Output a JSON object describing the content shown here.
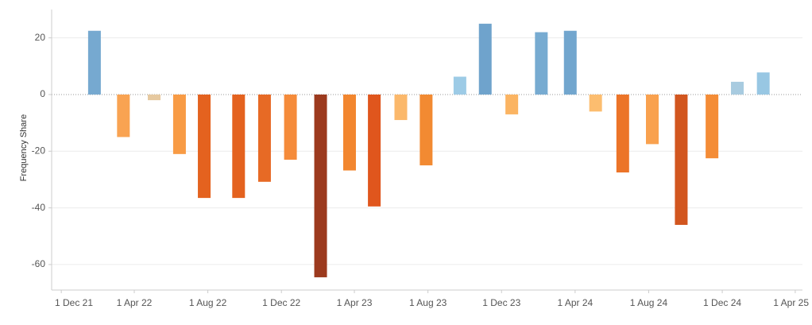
{
  "chart_data": {
    "type": "bar",
    "y_label": "Frequency Share",
    "x": [
      "2022-01-25",
      "2022-03-14",
      "2022-05-04",
      "2022-06-15",
      "2022-07-26",
      "2022-09-21",
      "2022-11-03",
      "2022-12-16",
      "2023-02-04",
      "2023-03-24",
      "2023-05-04",
      "2023-06-17",
      "2023-07-29",
      "2023-09-23",
      "2023-11-04",
      "2023-12-18",
      "2024-02-05",
      "2024-03-24",
      "2024-05-05",
      "2024-06-19",
      "2024-08-07",
      "2024-09-24",
      "2024-11-14",
      "2024-12-26",
      "2025-02-07"
    ],
    "values": [
      22.5,
      -15,
      -2,
      -21,
      -36.5,
      -36.5,
      -30.8,
      -23,
      -64.5,
      -26.8,
      -39.5,
      -9,
      -25,
      6.3,
      25,
      -7,
      22,
      22.5,
      -6,
      -27.5,
      -17.5,
      -46,
      -22.5,
      4.5,
      7.8
    ],
    "colors": [
      "#76a9d0",
      "#f9a352",
      "#e6c9a0",
      "#f89b45",
      "#e4621f",
      "#e4621f",
      "#e76a25",
      "#f58b3a",
      "#9c3a1e",
      "#f2862f",
      "#e0561d",
      "#fbb86b",
      "#f28a32",
      "#9dcbe6",
      "#6fa3cc",
      "#fbb462",
      "#77abd1",
      "#72a6ce",
      "#fcbd6f",
      "#ec7428",
      "#f9a14e",
      "#d2561f",
      "#f48c36",
      "#a8cbe0",
      "#98c7e3"
    ],
    "xlim": [
      "2021-11-15",
      "2025-04-13"
    ],
    "xticks": [
      {
        "value": "2021-12-01",
        "label": "1 Dec 21"
      },
      {
        "value": "2022-04-01",
        "label": "1 Apr 22"
      },
      {
        "value": "2022-08-01",
        "label": "1 Aug 22"
      },
      {
        "value": "2022-12-01",
        "label": "1 Dec 22"
      },
      {
        "value": "2023-04-01",
        "label": "1 Apr 23"
      },
      {
        "value": "2023-08-01",
        "label": "1 Aug 23"
      },
      {
        "value": "2023-12-01",
        "label": "1 Dec 23"
      },
      {
        "value": "2024-04-01",
        "label": "1 Apr 24"
      },
      {
        "value": "2024-08-01",
        "label": "1 Aug 24"
      },
      {
        "value": "2024-12-01",
        "label": "1 Dec 24"
      },
      {
        "value": "2025-04-01",
        "label": "1 Apr 25"
      }
    ],
    "ylim": [
      -69,
      30
    ],
    "yticks": [
      -60,
      -40,
      -20,
      0,
      20
    ],
    "grid": true
  }
}
